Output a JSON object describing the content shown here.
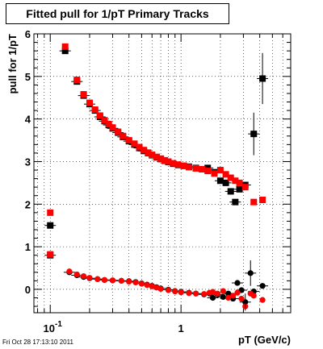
{
  "chart_data": {
    "type": "scatter",
    "title": "Fitted pull for 1/pT  Primary Tracks",
    "xlabel": "pT (GeV/c)",
    "ylabel": "pull for 1/pT",
    "x_scale": "log",
    "xlim": [
      0.075,
      6.9
    ],
    "ylim": [
      -0.55,
      6.0
    ],
    "y_ticks": [
      0,
      1,
      2,
      3,
      4,
      5,
      6
    ],
    "y_tick_labels": [
      "0",
      "1",
      "2",
      "3",
      "4",
      "5",
      "6"
    ],
    "x_major_tick_labels": [
      {
        "value": 0.1,
        "base": "10",
        "exp": "-1"
      },
      {
        "value": 1,
        "text": "1"
      }
    ],
    "grid": true,
    "colors": {
      "black_series": "#000000",
      "red_series": "#ff0000"
    },
    "series": [
      {
        "color": "black",
        "marker": "square",
        "points": [
          [
            0.1,
            1.5
          ],
          [
            0.13,
            5.6
          ],
          [
            0.16,
            4.88
          ],
          [
            0.18,
            4.55
          ],
          [
            0.2,
            4.35
          ],
          [
            0.22,
            4.2
          ],
          [
            0.24,
            4.05
          ],
          [
            0.26,
            3.95
          ],
          [
            0.28,
            3.86
          ],
          [
            0.3,
            3.78
          ],
          [
            0.33,
            3.68
          ],
          [
            0.36,
            3.58
          ],
          [
            0.4,
            3.48
          ],
          [
            0.44,
            3.4
          ],
          [
            0.48,
            3.32
          ],
          [
            0.52,
            3.25
          ],
          [
            0.56,
            3.2
          ],
          [
            0.6,
            3.15
          ],
          [
            0.65,
            3.1
          ],
          [
            0.7,
            3.06
          ],
          [
            0.75,
            3.02
          ],
          [
            0.8,
            2.99
          ],
          [
            0.87,
            2.95
          ],
          [
            0.95,
            2.92
          ],
          [
            1.05,
            2.9
          ],
          [
            1.15,
            2.88
          ],
          [
            1.3,
            2.85
          ],
          [
            1.45,
            2.82
          ],
          [
            1.6,
            2.85
          ],
          [
            1.8,
            2.75
          ],
          [
            2.0,
            2.55
          ],
          [
            2.2,
            2.5
          ],
          [
            2.4,
            2.3
          ],
          [
            2.6,
            2.05
          ],
          [
            2.8,
            2.35
          ],
          [
            3.1,
            2.45
          ],
          [
            3.6,
            3.65
          ],
          [
            4.2,
            4.95
          ]
        ],
        "points_lower": [
          [
            0.1,
            0.8
          ],
          [
            0.14,
            0.4
          ],
          [
            0.16,
            0.33
          ],
          [
            0.18,
            0.29
          ],
          [
            0.2,
            0.26
          ],
          [
            0.23,
            0.24
          ],
          [
            0.26,
            0.22
          ],
          [
            0.3,
            0.21
          ],
          [
            0.35,
            0.2
          ],
          [
            0.4,
            0.19
          ],
          [
            0.45,
            0.17
          ],
          [
            0.5,
            0.14
          ],
          [
            0.55,
            0.11
          ],
          [
            0.6,
            0.08
          ],
          [
            0.65,
            0.05
          ],
          [
            0.7,
            0.02
          ],
          [
            0.8,
            -0.01
          ],
          [
            0.9,
            -0.04
          ],
          [
            1.0,
            -0.06
          ],
          [
            1.15,
            -0.08
          ],
          [
            1.3,
            -0.1
          ],
          [
            1.5,
            -0.12
          ],
          [
            1.65,
            -0.1
          ],
          [
            1.75,
            -0.2
          ],
          [
            1.9,
            -0.12
          ],
          [
            2.1,
            -0.18
          ],
          [
            2.3,
            -0.1
          ],
          [
            2.5,
            -0.22
          ],
          [
            2.7,
            0.15
          ],
          [
            2.9,
            -0.02
          ],
          [
            3.1,
            -0.3
          ],
          [
            3.4,
            0.38
          ],
          [
            3.6,
            -0.05
          ],
          [
            4.2,
            0.08
          ]
        ]
      },
      {
        "color": "red",
        "marker": "square",
        "points": [
          [
            0.1,
            1.8
          ],
          [
            0.13,
            5.7
          ],
          [
            0.16,
            4.92
          ],
          [
            0.18,
            4.58
          ],
          [
            0.2,
            4.38
          ],
          [
            0.22,
            4.22
          ],
          [
            0.24,
            4.08
          ],
          [
            0.26,
            3.97
          ],
          [
            0.28,
            3.88
          ],
          [
            0.3,
            3.8
          ],
          [
            0.33,
            3.7
          ],
          [
            0.36,
            3.6
          ],
          [
            0.4,
            3.5
          ],
          [
            0.44,
            3.42
          ],
          [
            0.48,
            3.34
          ],
          [
            0.52,
            3.27
          ],
          [
            0.56,
            3.21
          ],
          [
            0.6,
            3.16
          ],
          [
            0.65,
            3.11
          ],
          [
            0.7,
            3.07
          ],
          [
            0.75,
            3.03
          ],
          [
            0.8,
            3.0
          ],
          [
            0.87,
            2.96
          ],
          [
            0.95,
            2.93
          ],
          [
            1.05,
            2.9
          ],
          [
            1.15,
            2.87
          ],
          [
            1.3,
            2.84
          ],
          [
            1.45,
            2.82
          ],
          [
            1.6,
            2.78
          ],
          [
            1.8,
            2.72
          ],
          [
            2.0,
            2.8
          ],
          [
            2.2,
            2.7
          ],
          [
            2.4,
            2.62
          ],
          [
            2.6,
            2.55
          ],
          [
            2.8,
            2.5
          ],
          [
            3.1,
            2.4
          ],
          [
            3.6,
            2.05
          ],
          [
            4.2,
            2.1
          ]
        ],
        "points_lower": [
          [
            0.1,
            0.82
          ],
          [
            0.14,
            0.42
          ],
          [
            0.16,
            0.35
          ],
          [
            0.18,
            0.31
          ],
          [
            0.2,
            0.27
          ],
          [
            0.23,
            0.24
          ],
          [
            0.26,
            0.22
          ],
          [
            0.3,
            0.21
          ],
          [
            0.35,
            0.2
          ],
          [
            0.4,
            0.18
          ],
          [
            0.45,
            0.16
          ],
          [
            0.5,
            0.13
          ],
          [
            0.55,
            0.1
          ],
          [
            0.6,
            0.07
          ],
          [
            0.65,
            0.04
          ],
          [
            0.7,
            0.01
          ],
          [
            0.8,
            -0.02
          ],
          [
            0.9,
            -0.05
          ],
          [
            1.0,
            -0.07
          ],
          [
            1.15,
            -0.09
          ],
          [
            1.3,
            -0.1
          ],
          [
            1.5,
            -0.11
          ],
          [
            1.65,
            -0.08
          ],
          [
            1.75,
            -0.06
          ],
          [
            1.9,
            -0.1
          ],
          [
            2.1,
            -0.04
          ],
          [
            2.3,
            -0.2
          ],
          [
            2.5,
            -0.15
          ],
          [
            2.7,
            -0.08
          ],
          [
            2.9,
            -0.22
          ],
          [
            3.1,
            -0.4
          ],
          [
            3.4,
            -0.1
          ],
          [
            3.6,
            -0.15
          ],
          [
            4.2,
            -0.25
          ]
        ]
      }
    ]
  },
  "footer": {
    "timestamp": "Fri Oct 28 17:13:10 2011"
  }
}
